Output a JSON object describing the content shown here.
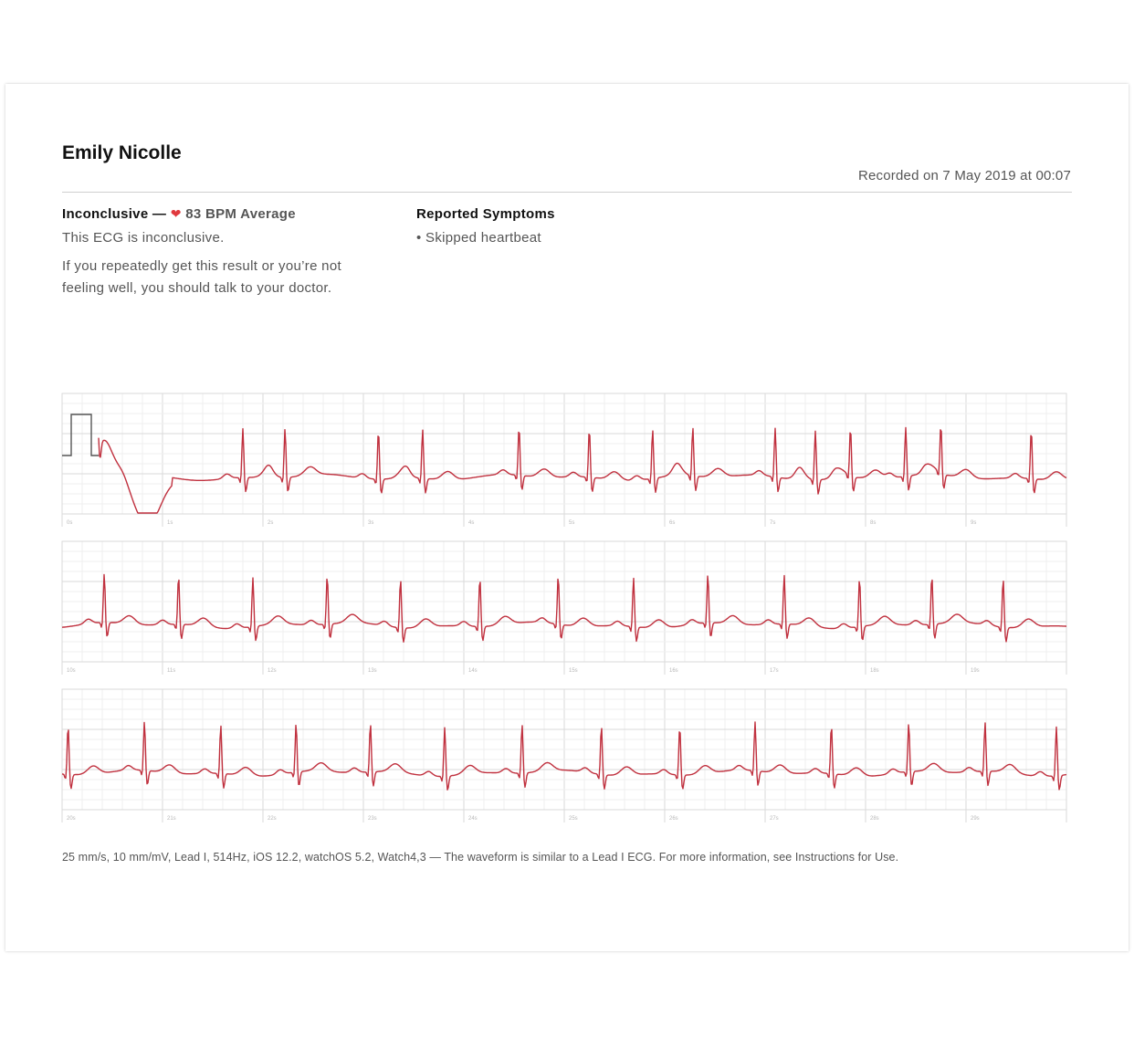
{
  "patient": {
    "name": "Emily Nicolle"
  },
  "recorded": "Recorded on 7 May 2019 at 00:07",
  "result": {
    "classification": "Inconclusive",
    "separator": " — ",
    "heart_icon": "heart-icon",
    "bpm": "83 BPM Average",
    "summary": "This ECG is inconclusive.",
    "advice": "If you repeatedly get this result or you’re not feeling well, you should talk to your doctor."
  },
  "symptoms": {
    "title": "Reported Symptoms",
    "items": [
      "• Skipped heartbeat"
    ]
  },
  "chart_data": {
    "type": "line",
    "ylabel": "",
    "xlabel": "",
    "strips": [
      {
        "ticks": [
          "0s",
          "1s",
          "2s",
          "3s",
          "4s",
          "5s",
          "6s",
          "7s",
          "8s",
          "9s"
        ],
        "beats": [
          0.35,
          1.8,
          2.22,
          3.15,
          3.59,
          4.55,
          5.25,
          5.88,
          6.28,
          7.1,
          7.5,
          7.85,
          8.4,
          8.75,
          9.65
        ]
      },
      {
        "ticks": [
          "10s",
          "11s",
          "12s",
          "13s",
          "14s",
          "15s",
          "16s",
          "17s",
          "18s",
          "19s"
        ],
        "beats": [
          10.42,
          11.16,
          11.9,
          12.64,
          13.37,
          14.16,
          14.94,
          15.69,
          16.43,
          17.19,
          17.94,
          18.66,
          19.37
        ]
      },
      {
        "ticks": [
          "20s",
          "21s",
          "22s",
          "23s",
          "24s",
          "25s",
          "26s",
          "27s",
          "28s",
          "29s"
        ],
        "beats": [
          20.06,
          20.82,
          21.58,
          22.33,
          23.07,
          23.81,
          24.58,
          25.37,
          26.15,
          26.9,
          27.66,
          28.43,
          29.19,
          29.9
        ]
      }
    ],
    "calibration_pulse": "1 mV"
  },
  "footnote": "25 mm/s, 10 mm/mV, Lead I, 514Hz, iOS 12.2, watchOS 5.2, Watch4,3 — The waveform is similar to a Lead I ECG. For more information, see Instructions for Use.",
  "colors": {
    "trace": "#c0303e",
    "grid_minor": "#efefef",
    "grid_major": "#dadada",
    "heart": "#e0393e"
  }
}
